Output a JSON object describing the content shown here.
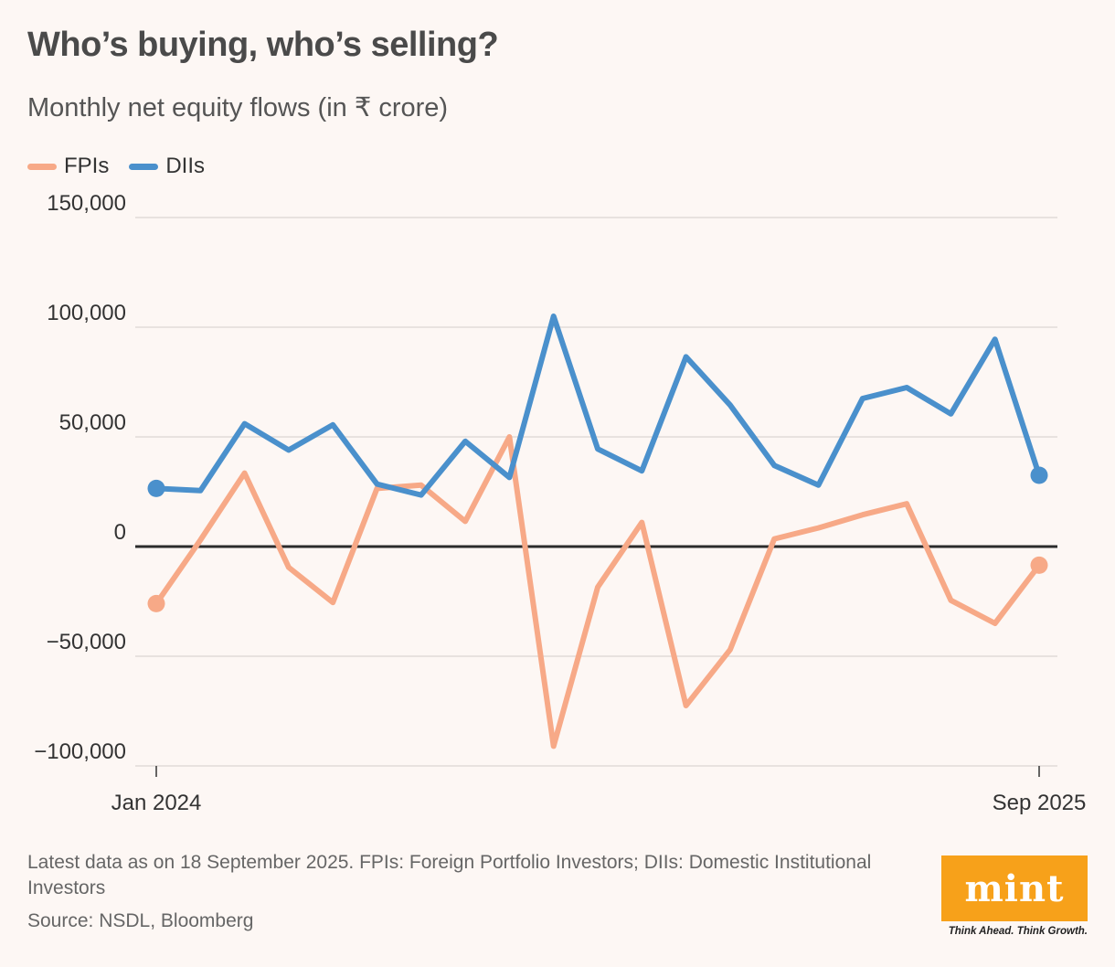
{
  "title": "Who’s buying, who’s selling?",
  "subtitle": "Monthly net equity flows (in ₹ crore)",
  "footnote": "Latest data as on 18 September 2025. FPIs: Foreign Portfolio Investors; DIIs: Domestic Institutional Investors",
  "source": "Source: NSDL, Bloomberg",
  "logo": {
    "text": "mint",
    "tagline": "Think Ahead. Think Growth.",
    "color": "#f7a11a"
  },
  "chart_data": {
    "type": "line",
    "x": [
      "Jan 2024",
      "Feb 2024",
      "Mar 2024",
      "Apr 2024",
      "May 2024",
      "Jun 2024",
      "Jul 2024",
      "Aug 2024",
      "Sep 2024",
      "Oct 2024",
      "Nov 2024",
      "Dec 2024",
      "Jan 2025",
      "Feb 2025",
      "Mar 2025",
      "Apr 2025",
      "May 2025",
      "Jun 2025",
      "Jul 2025",
      "Aug 2025",
      "Sep 2025"
    ],
    "x_tick_labels": [
      "Jan 2024",
      "Sep 2025"
    ],
    "ylim": [
      -100000,
      150000
    ],
    "yticks": [
      150000,
      100000,
      50000,
      0,
      -50000,
      -100000
    ],
    "ytick_labels": [
      "150,000",
      "100,000",
      "50,000",
      "0",
      "−50,000",
      "−100,000"
    ],
    "grid": true,
    "legend_position": "top-left",
    "series": [
      {
        "name": "FPIs",
        "color": "#f7a987",
        "values": [
          -26000,
          3000,
          33500,
          -9500,
          -25500,
          26500,
          28000,
          11500,
          50000,
          -91000,
          -18500,
          11000,
          -72500,
          -47000,
          3500,
          8500,
          14500,
          19500,
          -24500,
          -35000,
          -8500
        ]
      },
      {
        "name": "DIIs",
        "color": "#4a90cc",
        "values": [
          26500,
          25500,
          56000,
          44000,
          55500,
          28500,
          23500,
          48000,
          31500,
          105000,
          44500,
          34500,
          86500,
          64500,
          37000,
          28000,
          67500,
          72500,
          60500,
          94500,
          32500
        ]
      }
    ]
  }
}
